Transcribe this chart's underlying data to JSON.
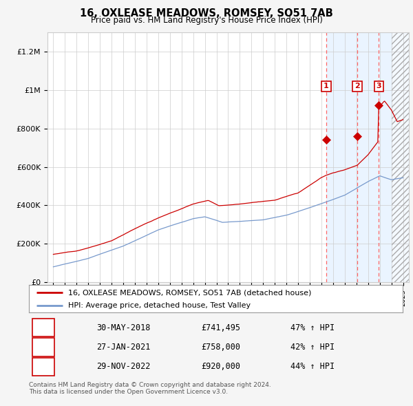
{
  "title": "16, OXLEASE MEADOWS, ROMSEY, SO51 7AB",
  "subtitle": "Price paid vs. HM Land Registry's House Price Index (HPI)",
  "ylabel_ticks": [
    "£0",
    "£200K",
    "£400K",
    "£600K",
    "£800K",
    "£1M",
    "£1.2M"
  ],
  "ylim": [
    0,
    1300000
  ],
  "yticks": [
    0,
    200000,
    400000,
    600000,
    800000,
    1000000,
    1200000
  ],
  "sale_dates_num": [
    2018.41,
    2021.07,
    2022.91
  ],
  "sale_prices": [
    741495,
    758000,
    920000
  ],
  "sale_labels": [
    "1",
    "2",
    "3"
  ],
  "legend_line1": "16, OXLEASE MEADOWS, ROMSEY, SO51 7AB (detached house)",
  "legend_line2": "HPI: Average price, detached house, Test Valley",
  "table_data": [
    [
      "1",
      "30-MAY-2018",
      "£741,495",
      "47% ↑ HPI"
    ],
    [
      "2",
      "27-JAN-2021",
      "£758,000",
      "42% ↑ HPI"
    ],
    [
      "3",
      "29-NOV-2022",
      "£920,000",
      "44% ↑ HPI"
    ]
  ],
  "footnote1": "Contains HM Land Registry data © Crown copyright and database right 2024.",
  "footnote2": "This data is licensed under the Open Government Licence v3.0.",
  "line_color_red": "#cc0000",
  "line_color_blue": "#7799cc",
  "sale_box_color": "#cc0000",
  "shaded_color": "#ddeeff",
  "grid_color": "#cccccc",
  "background_color": "#f5f5f5",
  "plot_bg_color": "#ffffff",
  "xlim": [
    1994.5,
    2025.5
  ],
  "hatch_start": 2024.0
}
